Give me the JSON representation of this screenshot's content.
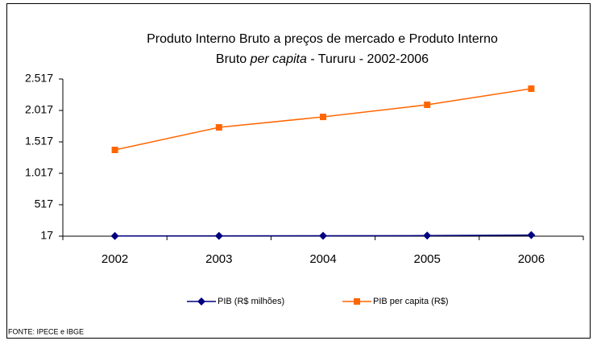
{
  "chart_data": {
    "type": "line",
    "title": [
      [
        "Produto Interno Bruto a preços de mercado  e  Produto Interno"
      ],
      [
        "Bruto ",
        "per capita",
        " - Tururu - 2002-2006"
      ]
    ],
    "categories": [
      "2002",
      "2003",
      "2004",
      "2005",
      "2006"
    ],
    "series": [
      {
        "name": "PIB (R$ milhões)",
        "color": "#000080",
        "marker": "diamond",
        "values": [
          20,
          22,
          24,
          26,
          35
        ]
      },
      {
        "name": "PIB per capita (R$)",
        "color": "#ff6600",
        "marker": "square",
        "values": [
          1389,
          1748,
          1914,
          2107,
          2363
        ]
      }
    ],
    "ylim": [
      17,
      2517
    ],
    "yticks": [
      17,
      517,
      {
        "value": 1017,
        "label": "1.017"
      },
      {
        "value": 1517,
        "label": "1.517"
      },
      {
        "value": 2017,
        "label": "2.017"
      },
      {
        "value": 2517,
        "label": "2.517"
      }
    ],
    "legend": "bottom",
    "source": "FONTE: IPECE e IBGE"
  }
}
